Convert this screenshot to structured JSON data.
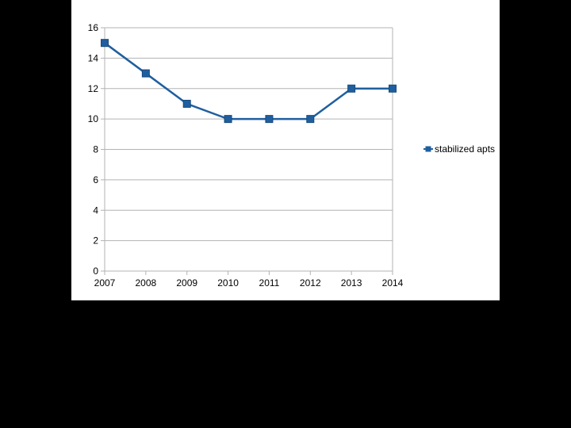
{
  "chart_data": {
    "type": "line",
    "categories": [
      "2007",
      "2008",
      "2009",
      "2010",
      "2011",
      "2012",
      "2013",
      "2014"
    ],
    "series": [
      {
        "name": "stabilized apts",
        "values": [
          15,
          13,
          11,
          10,
          10,
          10,
          12,
          12
        ],
        "color": "#1f5f9f",
        "marker": "square"
      }
    ],
    "title": "",
    "xlabel": "",
    "ylabel": "",
    "ylim": [
      0,
      16
    ],
    "yticks": [
      0,
      2,
      4,
      6,
      8,
      10,
      12,
      14,
      16
    ],
    "grid": true,
    "legend_position": "right"
  },
  "colors": {
    "background": "#000000",
    "panel": "#ffffff",
    "gridline": "#b3b3b3",
    "axis": "#b3b3b3"
  }
}
